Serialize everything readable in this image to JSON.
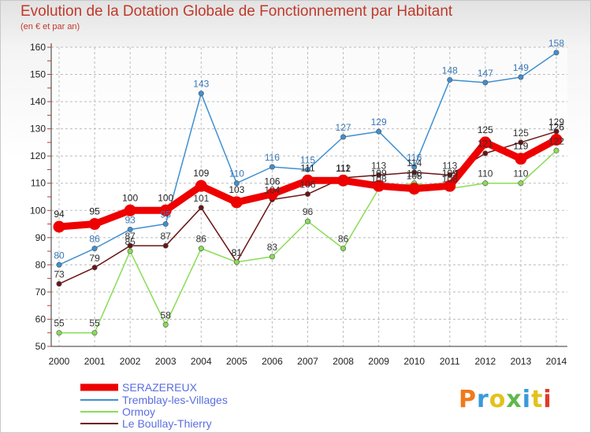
{
  "title": "Evolution de la Dotation Globale de Fonctionnement par Habitant",
  "subtitle": "(en € et par an)",
  "logo": "Proxiti",
  "colors": {
    "title": "#c0392b",
    "grid": "#bbbbbb",
    "axis_text": "#222222"
  },
  "chart_data": {
    "type": "line",
    "title": "Evolution de la Dotation Globale de Fonctionnement par Habitant",
    "subtitle": "(en € et par an)",
    "x": [
      "2000",
      "2001",
      "2002",
      "2003",
      "2004",
      "2005",
      "2006",
      "2007",
      "2008",
      "2009",
      "2010",
      "2011",
      "2012",
      "2013",
      "2014"
    ],
    "ylim": [
      50,
      160
    ],
    "yticks": [
      50,
      60,
      70,
      80,
      90,
      100,
      110,
      120,
      130,
      140,
      150,
      160
    ],
    "grid": true,
    "legend_position": "bottom-left",
    "series": [
      {
        "name": "SERAZEREUX",
        "color": "#ee0000",
        "values": [
          94,
          95,
          100,
          100,
          109,
          103,
          106,
          111,
          111,
          109,
          108,
          109,
          125,
          119,
          126
        ]
      },
      {
        "name": "Tremblay-les-Villages",
        "color": "#3f8fd0",
        "values": [
          80,
          86,
          93,
          95,
          143,
          110,
          116,
          115,
          127,
          129,
          116,
          148,
          147,
          149,
          158
        ]
      },
      {
        "name": "Ormoy",
        "color": "#88dd55",
        "values": [
          55,
          55,
          85,
          58,
          86,
          81,
          83,
          96,
          86,
          108,
          110,
          108,
          110,
          110,
          122
        ]
      },
      {
        "name": "Le Boullay-Thierry",
        "color": "#6b1414",
        "values": [
          73,
          79,
          87,
          87,
          101,
          81,
          104,
          106,
          112,
          113,
          114,
          113,
          121,
          125,
          129
        ]
      }
    ]
  }
}
